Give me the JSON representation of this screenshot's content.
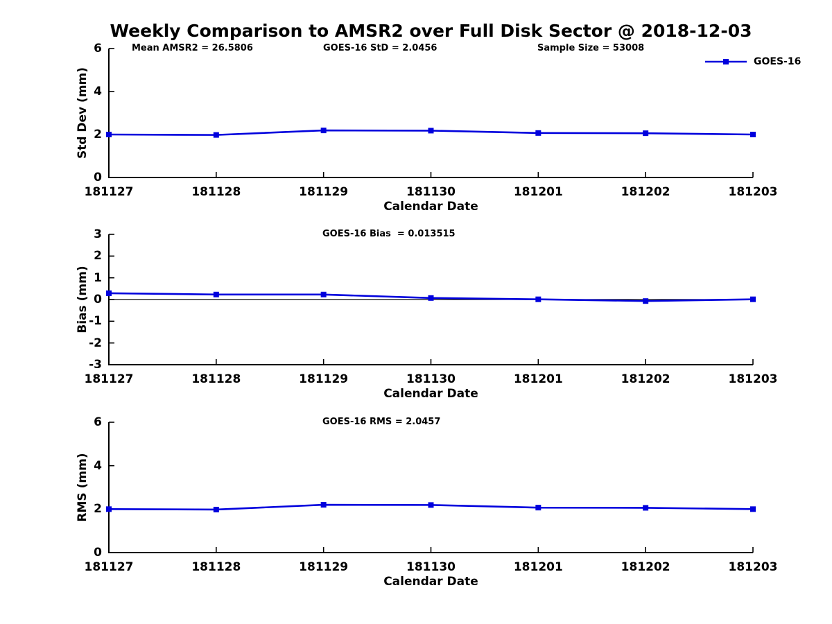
{
  "title": "Weekly Comparison to AMSR2 over Full Disk Sector @ 2018-12-03",
  "legend": {
    "label": "GOES-16",
    "color": "#0000dd",
    "marker": "square"
  },
  "colors": {
    "series": "#0000dd",
    "axis": "#000000",
    "zero_line": "#000000",
    "background": "#ffffff"
  },
  "chart_data": [
    {
      "id": "stddev",
      "type": "line",
      "x_categories": [
        "181127",
        "181128",
        "181129",
        "181130",
        "181201",
        "181202",
        "181203"
      ],
      "series": [
        {
          "name": "GOES-16",
          "color": "#0000dd",
          "marker": "square",
          "values": [
            2.0,
            1.98,
            2.19,
            2.18,
            2.07,
            2.06,
            2.0
          ]
        }
      ],
      "ylabel": "Std Dev (mm)",
      "xlabel": "Calendar Date",
      "ylim": [
        0,
        6
      ],
      "yticks": [
        0,
        2,
        4,
        6
      ],
      "grid": false,
      "zero_line": false,
      "legend_position": "top-right-outside",
      "annotations": [
        "Mean AMSR2 = 26.5806",
        "GOES-16 StD = 2.0456",
        "Sample Size = 53008"
      ]
    },
    {
      "id": "bias",
      "type": "line",
      "x_categories": [
        "181127",
        "181128",
        "181129",
        "181130",
        "181201",
        "181202",
        "181203"
      ],
      "series": [
        {
          "name": "GOES-16",
          "color": "#0000dd",
          "marker": "square",
          "values": [
            0.29,
            0.23,
            0.23,
            0.07,
            0.01,
            -0.07,
            0.01
          ]
        }
      ],
      "ylabel": "Bias (mm)",
      "xlabel": "Calendar Date",
      "ylim": [
        -3,
        3
      ],
      "yticks": [
        -3,
        -2,
        -1,
        0,
        1,
        2,
        3
      ],
      "grid": false,
      "zero_line": true,
      "annotations": [
        "GOES-16 Bias  = 0.013515"
      ]
    },
    {
      "id": "rms",
      "type": "line",
      "x_categories": [
        "181127",
        "181128",
        "181129",
        "181130",
        "181201",
        "181202",
        "181203"
      ],
      "series": [
        {
          "name": "GOES-16",
          "color": "#0000dd",
          "marker": "square",
          "values": [
            2.0,
            1.98,
            2.2,
            2.19,
            2.07,
            2.06,
            2.0
          ]
        }
      ],
      "ylabel": "RMS (mm)",
      "xlabel": "Calendar Date",
      "ylim": [
        0,
        6
      ],
      "yticks": [
        0,
        2,
        4,
        6
      ],
      "grid": false,
      "zero_line": false,
      "annotations": [
        "GOES-16 RMS = 2.0457"
      ]
    }
  ]
}
